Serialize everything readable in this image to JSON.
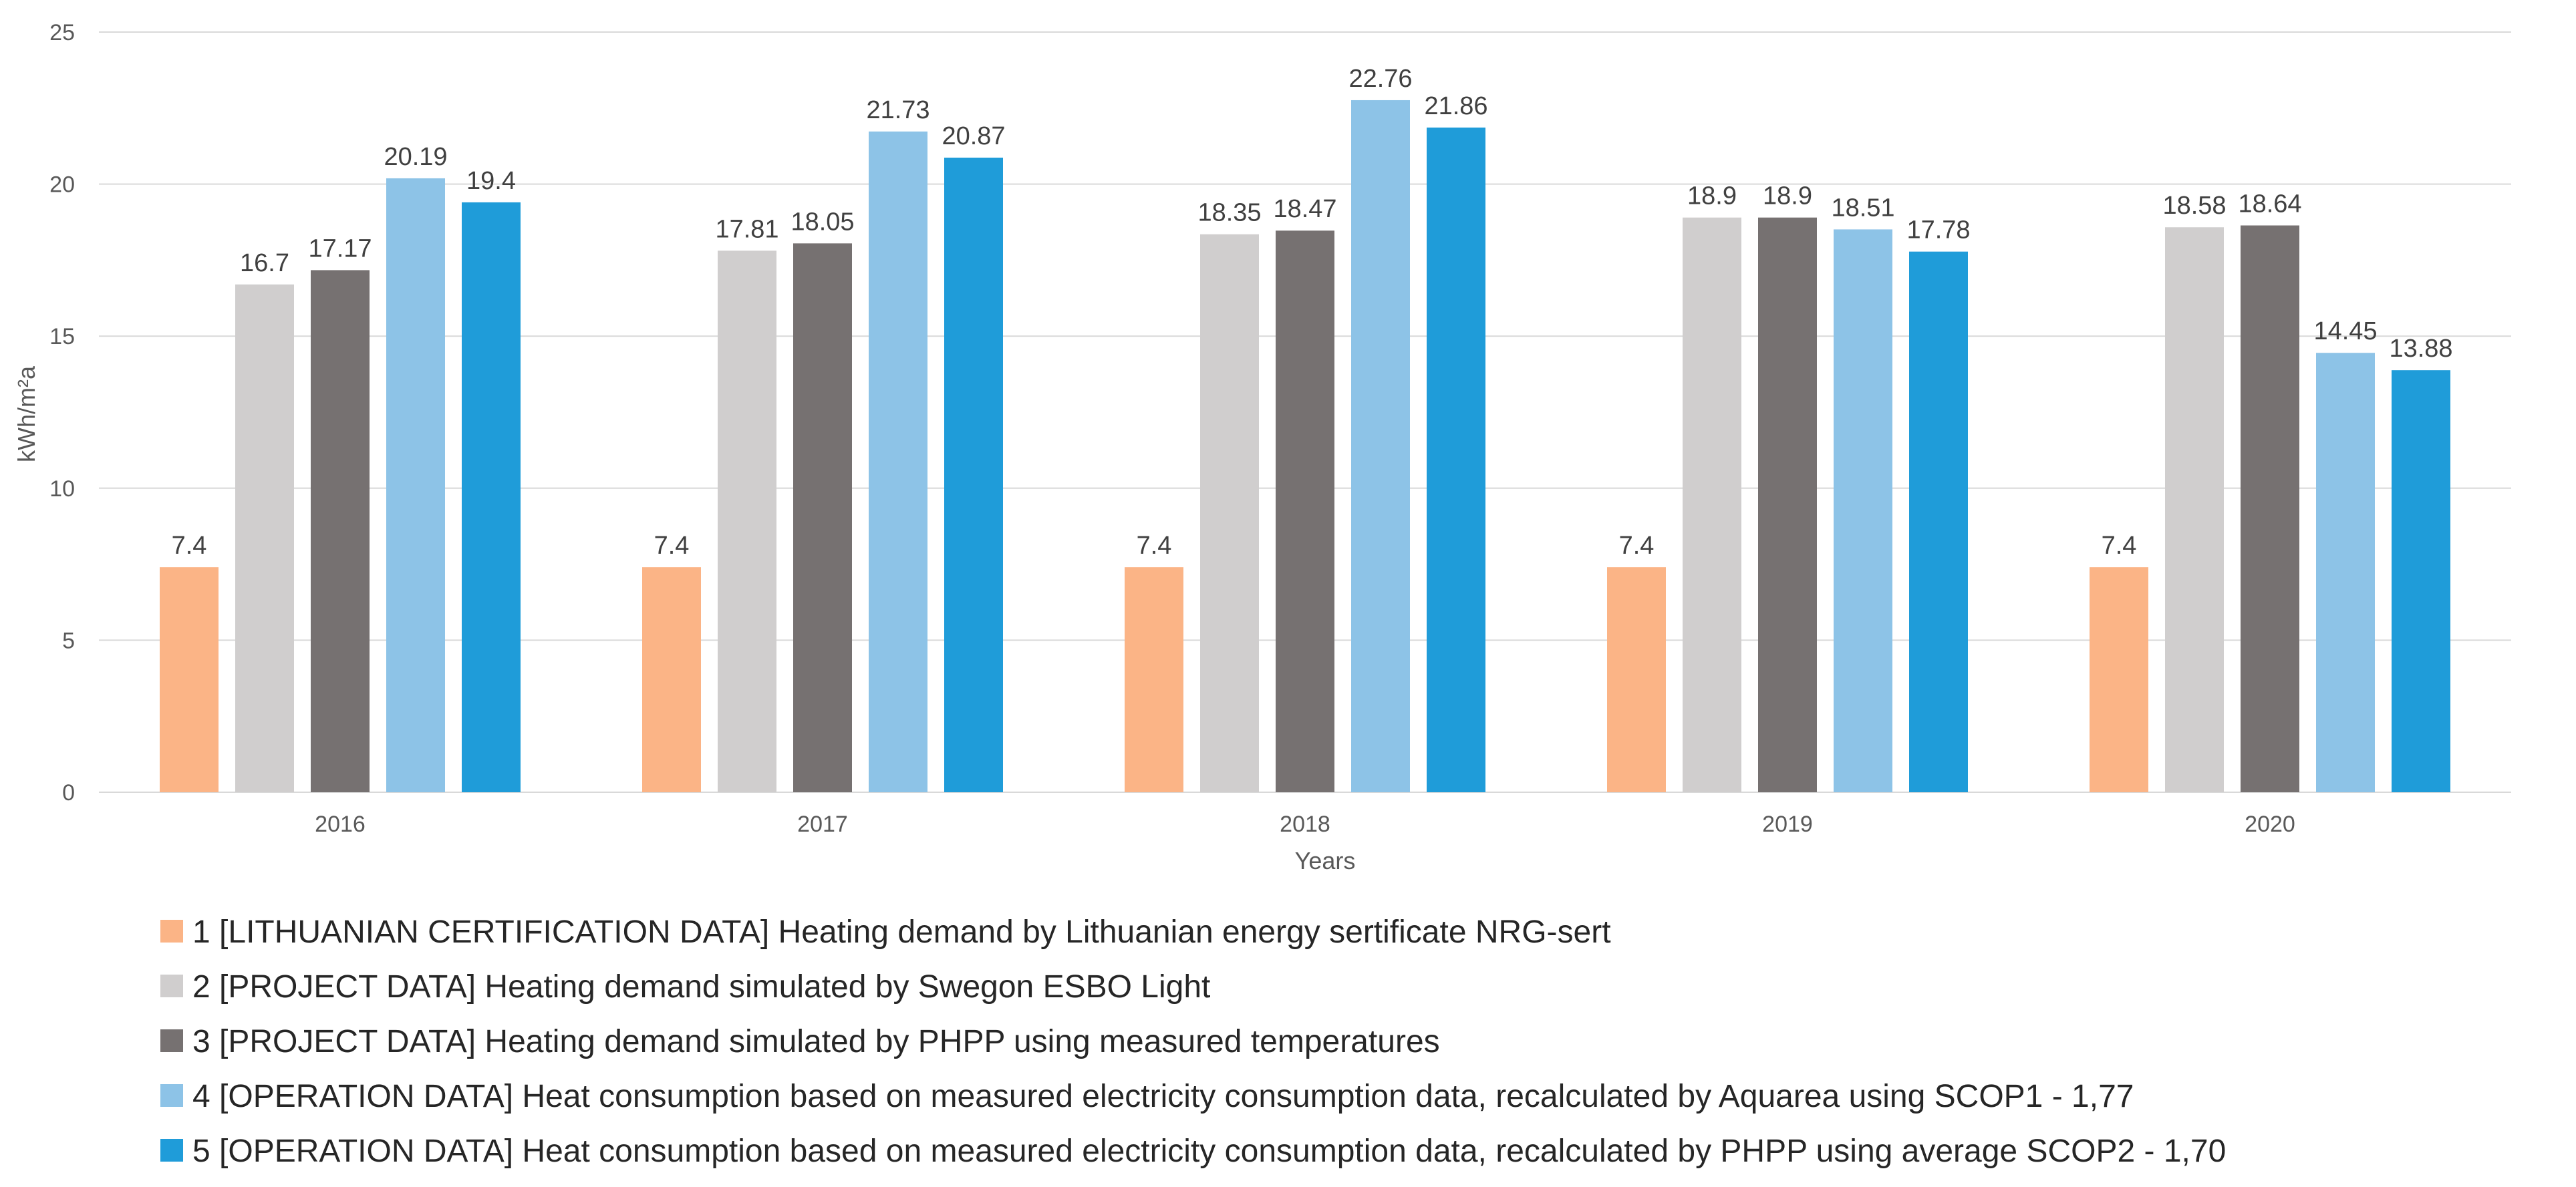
{
  "chart_data": {
    "type": "bar",
    "title": "",
    "xlabel": "Years",
    "ylabel": "kWh/m²a",
    "ylim": [
      0,
      25
    ],
    "yticks": [
      0,
      5,
      10,
      15,
      20,
      25
    ],
    "grid": true,
    "legend_position": "bottom",
    "categories": [
      "2016",
      "2017",
      "2018",
      "2019",
      "2020"
    ],
    "series": [
      {
        "name": "1 [LITHUANIAN CERTIFICATION DATA] Heating demand by Lithuanian energy sertificate NRG-sert",
        "color": "#FBB486",
        "values": [
          7.4,
          7.4,
          7.4,
          7.4,
          7.4
        ],
        "labels": [
          "7.4",
          "7.4",
          "7.4",
          "7.4",
          "7.4"
        ]
      },
      {
        "name": "2 [PROJECT DATA] Heating demand simulated by Swegon ESBO Light",
        "color": "#D0CECE",
        "values": [
          16.7,
          17.81,
          18.35,
          18.9,
          18.58
        ],
        "labels": [
          "16.7",
          "17.81",
          "18.35",
          "18.9",
          "18.58"
        ]
      },
      {
        "name": "3 [PROJECT DATA] Heating demand simulated by PHPP using measured temperatures",
        "color": "#767171",
        "values": [
          17.17,
          18.05,
          18.47,
          18.9,
          18.64
        ],
        "labels": [
          "17.17",
          "18.05",
          "18.47",
          "18.9",
          "18.64"
        ]
      },
      {
        "name": "4 [OPERATION DATA] Heat consumption based on measured electricity consumption data, recalculated by Aquarea using SCOP1 - 1,77",
        "color": "#8DC3E7",
        "values": [
          20.19,
          21.73,
          22.76,
          18.51,
          14.45
        ],
        "labels": [
          "20.19",
          "21.73",
          "22.76",
          "18.51",
          "14.45"
        ]
      },
      {
        "name": "5 [OPERATION DATA] Heat consumption based on measured electricity consumption data, recalculated by PHPP using average SCOP2 - 1,70",
        "color": "#1F9CD9",
        "values": [
          19.4,
          20.87,
          21.86,
          17.78,
          13.88
        ],
        "labels": [
          "19.4",
          "20.87",
          "21.86",
          "17.78",
          "13.88"
        ]
      }
    ]
  },
  "colors": {
    "gridline": "#D9D9D9",
    "axis_text": "#595959",
    "data_label_text": "#404040",
    "legend_text": "#262626"
  }
}
